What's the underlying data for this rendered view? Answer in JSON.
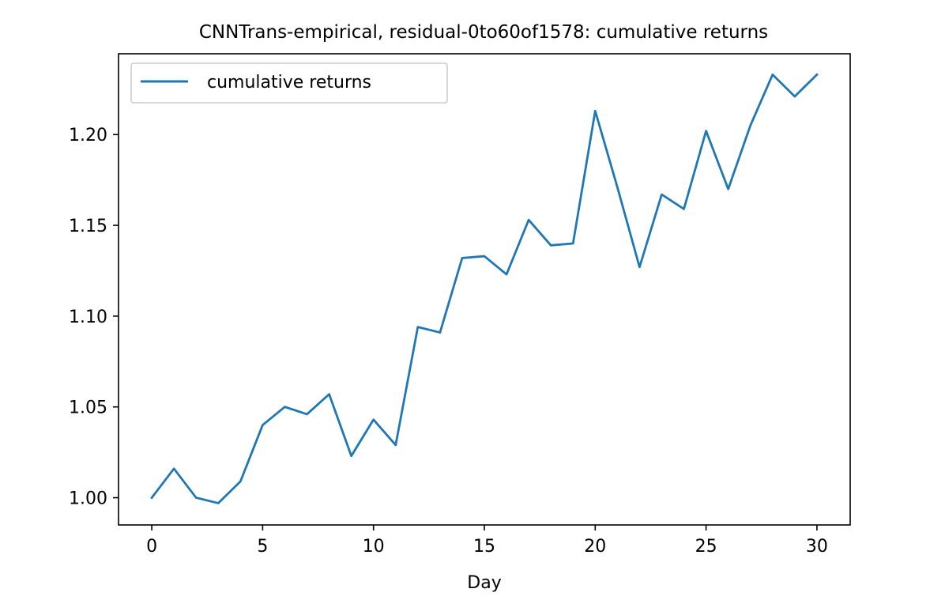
{
  "chart_data": {
    "type": "line",
    "title": "CNNTrans-empirical, residual-0to60of1578: cumulative returns",
    "xlabel": "Day",
    "ylabel": "",
    "xlim": [
      -1.5,
      31.5
    ],
    "ylim": [
      0.985,
      1.2445
    ],
    "x_ticks": [
      0,
      5,
      10,
      15,
      20,
      25,
      30
    ],
    "x_tick_labels": [
      "0",
      "5",
      "10",
      "15",
      "20",
      "25",
      "30"
    ],
    "y_ticks": [
      1.0,
      1.05,
      1.1,
      1.15,
      1.2
    ],
    "y_tick_labels": [
      "1.00",
      "1.05",
      "1.10",
      "1.15",
      "1.20"
    ],
    "grid": false,
    "legend_position": "top-left",
    "series": [
      {
        "name": "cumulative returns",
        "color": "#1f77b4",
        "x": [
          0,
          1,
          2,
          3,
          4,
          5,
          6,
          7,
          8,
          9,
          10,
          11,
          12,
          13,
          14,
          15,
          16,
          17,
          18,
          19,
          20,
          21,
          22,
          23,
          24,
          25,
          26,
          27,
          28,
          29,
          30
        ],
        "y": [
          1.0,
          1.016,
          1.0,
          0.997,
          1.009,
          1.04,
          1.05,
          1.046,
          1.057,
          1.023,
          1.043,
          1.029,
          1.094,
          1.091,
          1.132,
          1.133,
          1.123,
          1.153,
          1.139,
          1.14,
          1.213,
          1.171,
          1.127,
          1.167,
          1.159,
          1.202,
          1.17,
          1.205,
          1.233,
          1.221,
          1.233
        ]
      }
    ]
  }
}
